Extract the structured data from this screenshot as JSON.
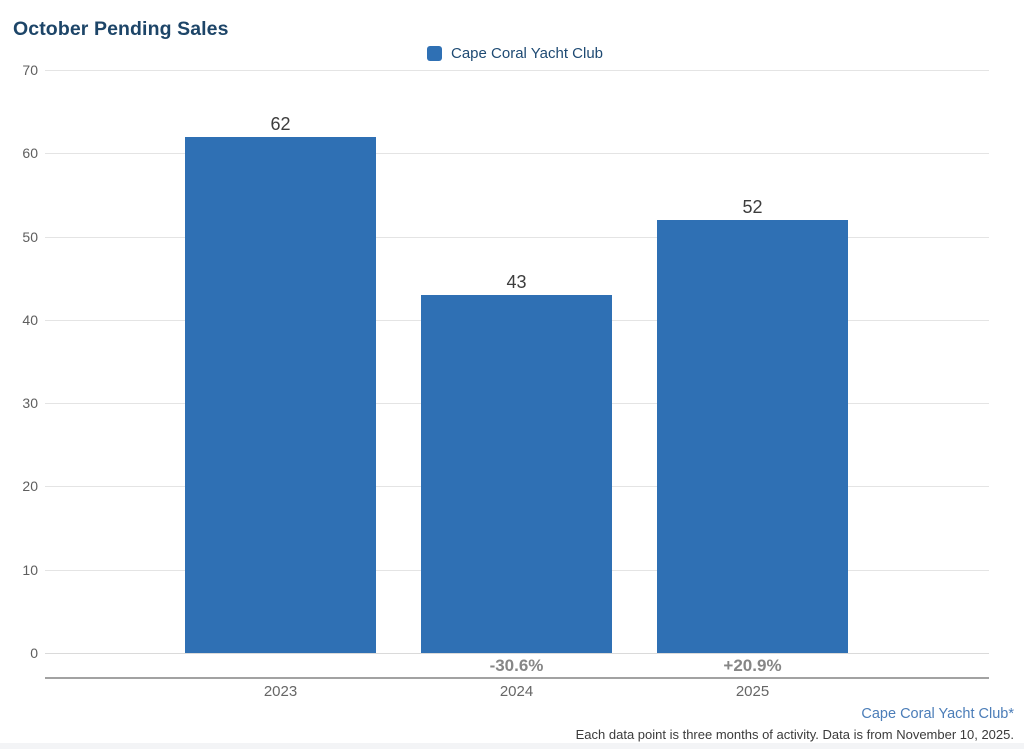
{
  "title": "October Pending Sales",
  "legend": {
    "label": "Cape Coral Yacht Club",
    "marker_color": "#2f70b4"
  },
  "chart_data": {
    "type": "bar",
    "title": "October Pending Sales",
    "series_name": "Cape Coral Yacht Club",
    "categories": [
      "2023",
      "2024",
      "2025"
    ],
    "values": [
      62,
      43,
      52
    ],
    "value_labels": [
      "62",
      "43",
      "52"
    ],
    "change_labels": [
      "",
      "-30.6%",
      "+20.9%"
    ],
    "yticks": [
      0,
      10,
      20,
      30,
      40,
      50,
      60,
      70
    ],
    "ylim": [
      0,
      70
    ],
    "grid": true,
    "legend_position": "top-center",
    "bar_color": "#2f70b4",
    "xlabel": "",
    "ylabel": ""
  },
  "footer": {
    "source_link": "Cape Coral Yacht Club*",
    "note": "Each data point is three months of activity. Data is from November 10, 2025."
  },
  "colors": {
    "title_text": "#1d4568",
    "bar_fill": "#2f70b4",
    "gridline": "#e4e4e4",
    "axis_line": "#a2a2a2",
    "value_label": "#3d3d3d",
    "pct_label": "#868686",
    "tick_label": "#5e5e5e",
    "link_text": "#4b7db8",
    "note_text": "#3b3b3b"
  }
}
